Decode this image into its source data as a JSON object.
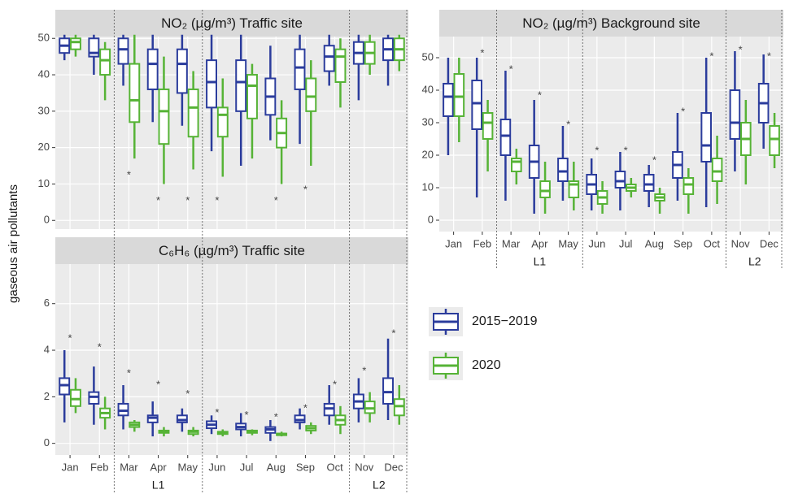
{
  "y_label": "gaseous air pollutants",
  "chart_data": [
    {
      "type": "box",
      "title": "NO₂ (µg/m³) Traffic site",
      "x_labels": false,
      "categories": [
        "Jan",
        "Feb",
        "Mar",
        "Apr",
        "May",
        "Jun",
        "Jul",
        "Aug",
        "Sep",
        "Oct",
        "Nov",
        "Dec"
      ],
      "ylim": [
        -2.4,
        50.5
      ],
      "yticks": [
        0,
        10,
        20,
        30,
        40,
        50
      ],
      "grid": true,
      "dividers": [
        2,
        5,
        10,
        12
      ],
      "star_label": "*",
      "stars": [
        null,
        null,
        13,
        6,
        6,
        6,
        null,
        6,
        9,
        null,
        null,
        null
      ],
      "series": [
        {
          "name": "2015−2019",
          "color": "#2b3c9c",
          "values": [
            [
              44,
              46,
              48,
              50,
              51
            ],
            [
              40,
              45,
              46,
              50,
              51
            ],
            [
              37,
              43,
              47,
              50,
              51
            ],
            [
              27,
              36,
              43,
              47,
              51
            ],
            [
              26,
              35,
              43,
              47,
              51
            ],
            [
              19,
              31,
              38,
              44,
              51
            ],
            [
              15,
              30,
              38,
              44,
              51
            ],
            [
              22,
              29,
              34,
              39,
              48
            ],
            [
              21,
              36,
              42,
              47,
              51
            ],
            [
              37,
              41,
              45,
              48,
              51
            ],
            [
              33,
              43,
              46,
              49,
              51
            ],
            [
              37,
              44,
              47,
              50,
              51
            ]
          ]
        },
        {
          "name": "2020",
          "color": "#56b336",
          "values": [
            [
              45,
              47,
              49,
              50,
              51
            ],
            [
              33,
              40,
              44,
              47,
              49
            ],
            [
              17,
              27,
              33,
              43,
              51
            ],
            [
              10,
              21,
              30,
              36,
              45
            ],
            [
              14,
              23,
              31,
              36,
              41
            ],
            [
              12,
              23,
              29,
              31,
              39
            ],
            [
              17,
              28,
              37,
              40,
              43
            ],
            [
              10,
              20,
              24,
              28,
              33
            ],
            [
              15,
              30,
              34,
              39,
              44
            ],
            [
              31,
              38,
              45,
              47,
              50
            ],
            [
              40,
              43,
              46,
              49,
              51
            ],
            [
              41,
              44,
              47,
              50,
              51
            ]
          ]
        }
      ]
    },
    {
      "type": "box",
      "title": "NO₂ (µg/m³) Background site",
      "x_labels": true,
      "categories": [
        "Jan",
        "Feb",
        "Mar",
        "Apr",
        "May",
        "Jun",
        "Jul",
        "Aug",
        "Sep",
        "Oct",
        "Nov",
        "Dec"
      ],
      "ylim": [
        -3.5,
        56.5
      ],
      "yticks": [
        0,
        10,
        20,
        30,
        40,
        50
      ],
      "grid": true,
      "dividers": [
        2,
        5,
        10,
        12
      ],
      "periods": [
        {
          "label": "L1",
          "start": 2,
          "end": 4
        },
        {
          "label": "L2",
          "start": 10,
          "end": 11
        }
      ],
      "star_label": "*",
      "stars": [
        null,
        52,
        47,
        39,
        30,
        22,
        22,
        19,
        34,
        51,
        53,
        51
      ],
      "series": [
        {
          "name": "2015−2019",
          "color": "#2b3c9c",
          "values": [
            [
              20,
              32,
              38,
              42,
              50
            ],
            [
              7,
              28,
              36,
              43,
              50
            ],
            [
              6,
              20,
              26,
              31,
              46
            ],
            [
              2,
              13,
              18,
              23,
              37
            ],
            [
              6,
              12,
              15,
              19,
              29
            ],
            [
              3,
              8,
              11,
              14,
              19
            ],
            [
              3,
              10,
              12,
              15,
              21
            ],
            [
              4,
              9,
              11,
              14,
              17
            ],
            [
              6,
              13,
              17,
              21,
              33
            ],
            [
              4,
              18,
              23,
              33,
              50
            ],
            [
              15,
              25,
              30,
              40,
              52
            ],
            [
              22,
              30,
              36,
              42,
              51
            ]
          ]
        },
        {
          "name": "2020",
          "color": "#56b336",
          "values": [
            [
              24,
              32,
              38,
              45,
              50
            ],
            [
              15,
              25,
              30,
              33,
              37
            ],
            [
              11,
              15,
              18,
              19,
              22
            ],
            [
              2,
              7,
              9,
              12,
              18
            ],
            [
              3,
              7,
              11,
              12,
              18
            ],
            [
              2,
              5,
              7,
              9,
              12
            ],
            [
              7,
              9,
              10,
              11,
              13
            ],
            [
              2,
              6,
              7,
              8,
              10
            ],
            [
              2,
              8,
              11,
              13,
              16
            ],
            [
              5,
              12,
              15,
              19,
              26
            ],
            [
              11,
              20,
              25,
              30,
              37
            ],
            [
              16,
              20,
              25,
              29,
              33
            ]
          ]
        }
      ]
    },
    {
      "type": "box",
      "title": "C₆H₆ (µg/m³) Traffic site",
      "x_labels": true,
      "categories": [
        "Jan",
        "Feb",
        "Mar",
        "Apr",
        "May",
        "Jun",
        "Jul",
        "Aug",
        "Sep",
        "Oct",
        "Nov",
        "Dec"
      ],
      "ylim": [
        -0.5,
        7.7
      ],
      "yticks": [
        0,
        2,
        4,
        6
      ],
      "grid": true,
      "dividers": [
        2,
        5,
        10,
        12
      ],
      "periods": [
        {
          "label": "L1",
          "start": 2,
          "end": 4
        },
        {
          "label": "L2",
          "start": 10,
          "end": 11
        }
      ],
      "star_label": "*",
      "stars": [
        4.6,
        4.2,
        3.1,
        2.6,
        2.2,
        1.4,
        1.3,
        1.2,
        1.6,
        2.6,
        3.2,
        4.8
      ],
      "series": [
        {
          "name": "2015−2019",
          "color": "#2b3c9c",
          "values": [
            [
              0.9,
              2.1,
              2.5,
              2.8,
              4.0
            ],
            [
              0.8,
              1.7,
              2.0,
              2.2,
              3.3
            ],
            [
              0.6,
              1.2,
              1.4,
              1.7,
              2.5
            ],
            [
              0.3,
              0.9,
              1.1,
              1.2,
              1.8
            ],
            [
              0.5,
              0.9,
              1.0,
              1.2,
              1.5
            ],
            [
              0.4,
              0.65,
              0.8,
              0.95,
              1.2
            ],
            [
              0.3,
              0.6,
              0.7,
              0.85,
              1.3
            ],
            [
              0.1,
              0.45,
              0.6,
              0.7,
              1.0
            ],
            [
              0.6,
              0.9,
              1.0,
              1.2,
              1.5
            ],
            [
              0.8,
              1.2,
              1.5,
              1.7,
              2.5
            ],
            [
              0.9,
              1.5,
              1.8,
              2.1,
              2.8
            ],
            [
              1.0,
              1.7,
              2.2,
              2.8,
              4.5
            ]
          ]
        },
        {
          "name": "2020",
          "color": "#56b336",
          "values": [
            [
              1.3,
              1.6,
              1.9,
              2.3,
              2.8
            ],
            [
              0.6,
              1.1,
              1.3,
              1.5,
              2.0
            ],
            [
              0.5,
              0.7,
              0.8,
              0.9,
              1.0
            ],
            [
              0.3,
              0.45,
              0.5,
              0.55,
              0.7
            ],
            [
              0.3,
              0.4,
              0.5,
              0.55,
              0.7
            ],
            [
              0.3,
              0.4,
              0.45,
              0.5,
              0.6
            ],
            [
              0.35,
              0.45,
              0.5,
              0.55,
              0.6
            ],
            [
              0.3,
              0.35,
              0.4,
              0.42,
              0.5
            ],
            [
              0.4,
              0.55,
              0.65,
              0.75,
              0.9
            ],
            [
              0.4,
              0.8,
              1.0,
              1.2,
              1.6
            ],
            [
              0.9,
              1.3,
              1.5,
              1.8,
              2.2
            ],
            [
              0.8,
              1.2,
              1.6,
              1.9,
              2.5
            ]
          ]
        }
      ]
    }
  ]
}
